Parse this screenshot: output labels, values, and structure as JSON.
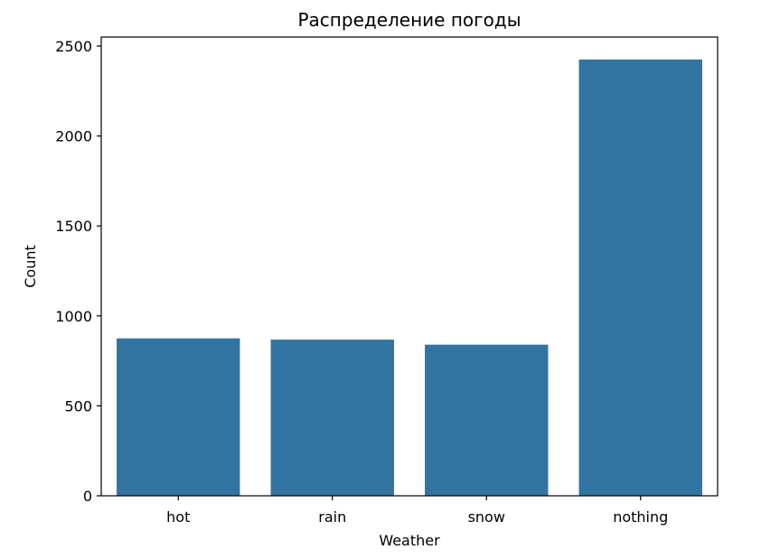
{
  "chart_data": {
    "type": "bar",
    "title": "Распределение погоды",
    "xlabel": "Weather",
    "ylabel": "Count",
    "categories": [
      "hot",
      "rain",
      "snow",
      "nothing"
    ],
    "values": [
      875,
      868,
      840,
      2425
    ],
    "ylim": [
      0,
      2550
    ],
    "yticks": [
      0,
      500,
      1000,
      1500,
      2000,
      2500
    ],
    "grid": false,
    "bar_color": "#3274a1"
  }
}
